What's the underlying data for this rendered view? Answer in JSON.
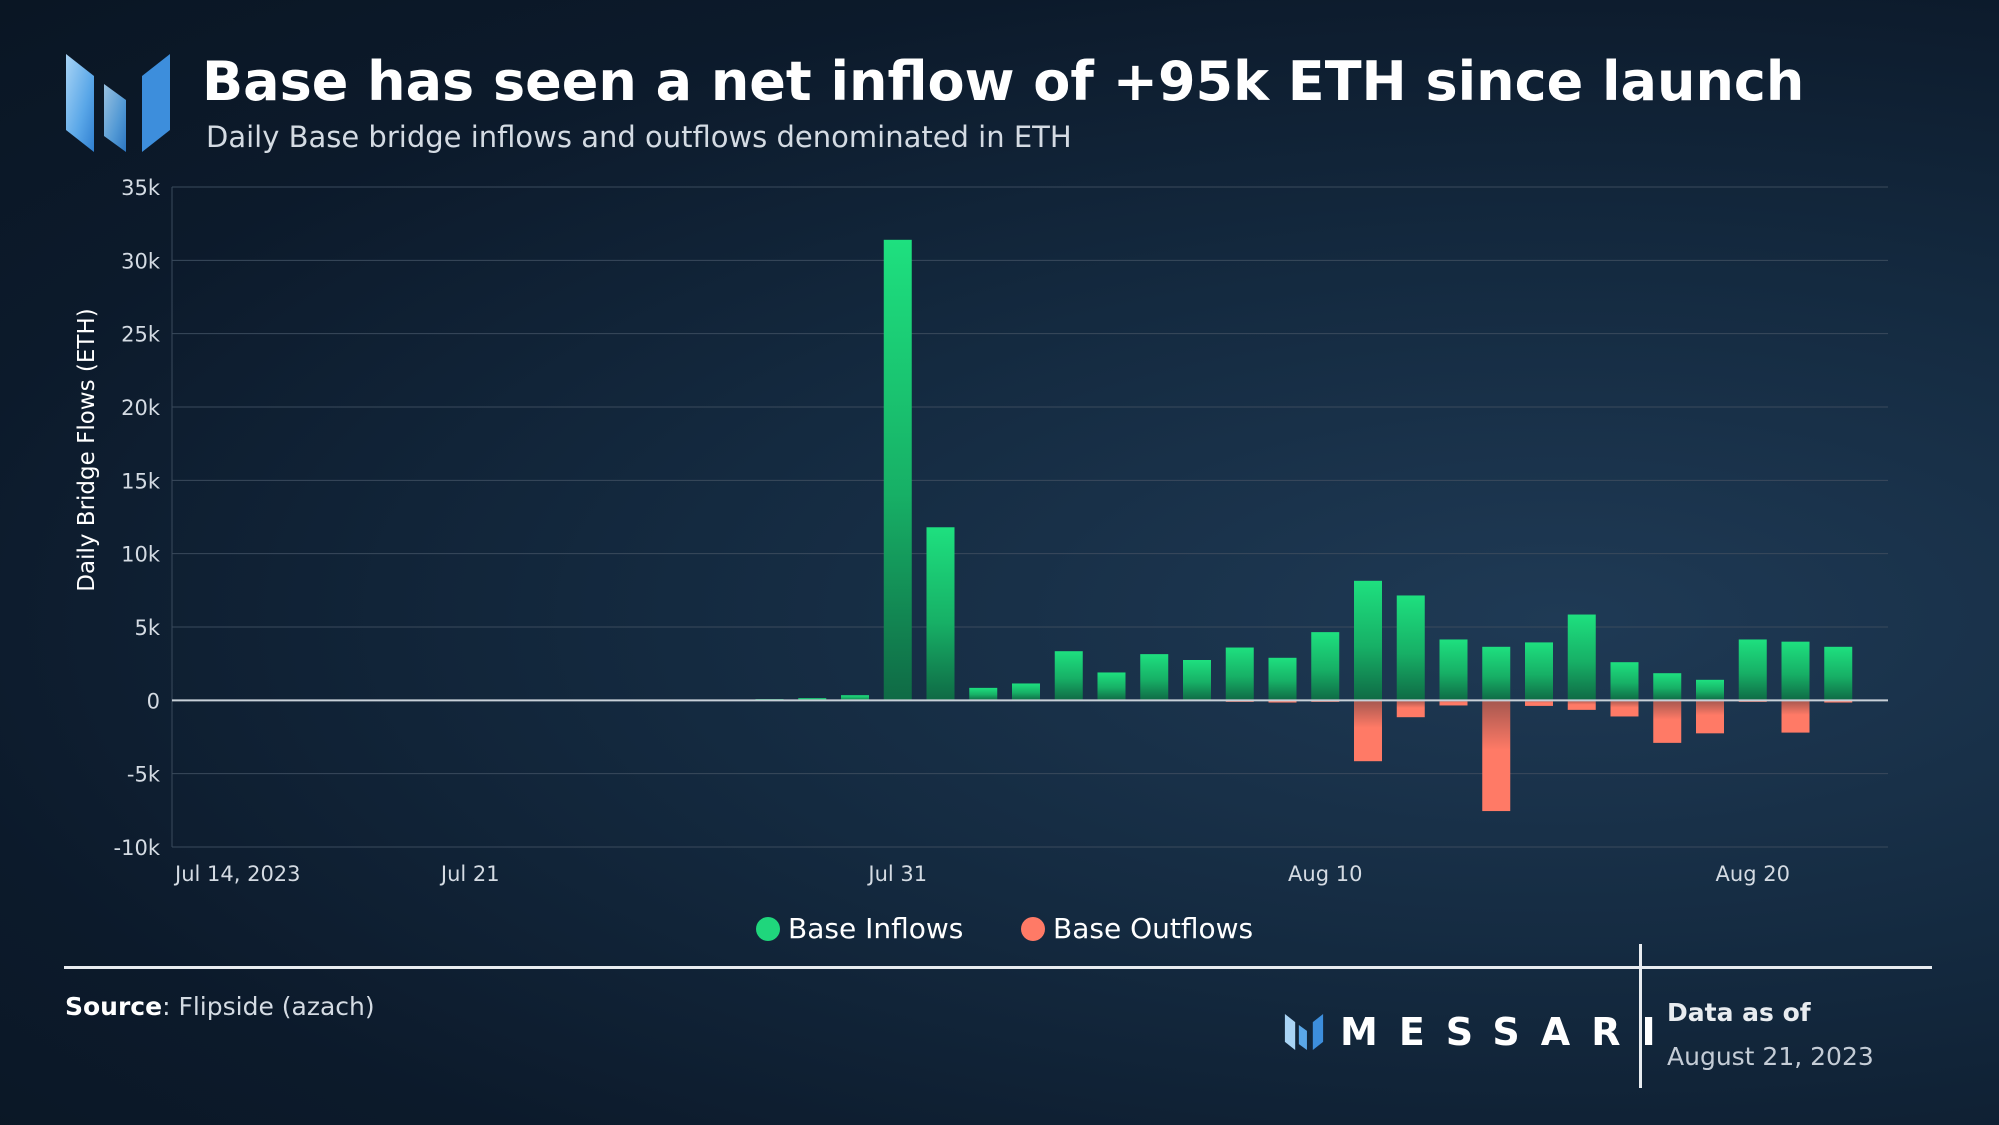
{
  "header": {
    "title": "Base has seen a net inflow of +95k ETH since launch",
    "subtitle": "Daily Base bridge inflows and outflows denominated in ETH"
  },
  "chart_data": {
    "type": "bar",
    "title": "Base has seen a net inflow of +95k ETH since launch",
    "ylabel": "Daily Bridge Flows (ETH)",
    "xlabel": "",
    "ylim": [
      -10000,
      35000
    ],
    "yticks": [
      35000,
      30000,
      25000,
      20000,
      15000,
      10000,
      5000,
      0,
      -5000,
      -10000
    ],
    "ytick_labels": [
      "35k",
      "30k",
      "25k",
      "20k",
      "15k",
      "10k",
      "5k",
      "0",
      "-5k",
      "-10k"
    ],
    "x_start": "Jul 14, 2023",
    "x_ticks": [
      {
        "day_index": 0,
        "label": "Jul 14, 2023"
      },
      {
        "day_index": 7,
        "label": "Jul 21"
      },
      {
        "day_index": 17,
        "label": "Jul 31"
      },
      {
        "day_index": 27,
        "label": "Aug 10"
      },
      {
        "day_index": 37,
        "label": "Aug 20"
      }
    ],
    "legend_position": "bottom-center",
    "colors": {
      "inflow": "#1fd67c",
      "outflow": "#ff7a66"
    },
    "series": [
      {
        "name": "Base Inflows",
        "start_index": 14,
        "values": [
          80,
          150,
          350,
          31400,
          11800,
          850,
          1150,
          3350,
          1900,
          3150,
          2750,
          3600,
          2900,
          4650,
          8150,
          7150,
          4150,
          3650,
          3950,
          5850,
          2600,
          1850,
          1400,
          4150,
          4000,
          3650
        ]
      },
      {
        "name": "Base Outflows",
        "start_index": 14,
        "values": [
          0,
          0,
          0,
          0,
          0,
          0,
          0,
          0,
          0,
          0,
          0,
          -80,
          -150,
          -80,
          -4150,
          -1150,
          -350,
          -7550,
          -380,
          -650,
          -1100,
          -2900,
          -2250,
          -80,
          -2200,
          -150
        ]
      }
    ]
  },
  "legend": {
    "inflow_label": "Base Inflows",
    "outflow_label": "Base Outflows"
  },
  "footer": {
    "source_label": "Source",
    "source_value": ": Flipside (azach)",
    "brand": "MESSARI",
    "data_as_of_label": "Data as of",
    "data_as_of_date": "August 21, 2023"
  }
}
